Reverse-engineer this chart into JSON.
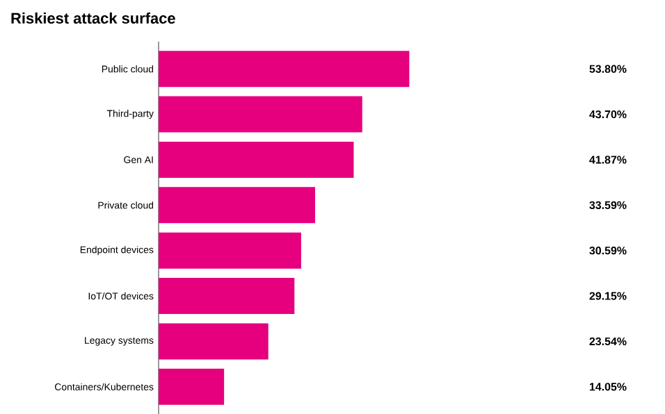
{
  "chart_data": {
    "type": "bar",
    "orientation": "horizontal",
    "title": "Riskiest attack surface",
    "categories": [
      "Public cloud",
      "Third-party",
      "Gen AI",
      "Private cloud",
      "Endpoint devices",
      "IoT/OT devices",
      "Legacy systems",
      "Containers/Kubernetes"
    ],
    "values": [
      53.8,
      43.7,
      41.87,
      33.59,
      30.59,
      29.15,
      23.54,
      14.05
    ],
    "value_labels": [
      "53.80%",
      "43.70%",
      "41.87%",
      "33.59%",
      "30.59%",
      "29.15%",
      "23.54%",
      "14.05%"
    ],
    "color": "#e6007e"
  }
}
